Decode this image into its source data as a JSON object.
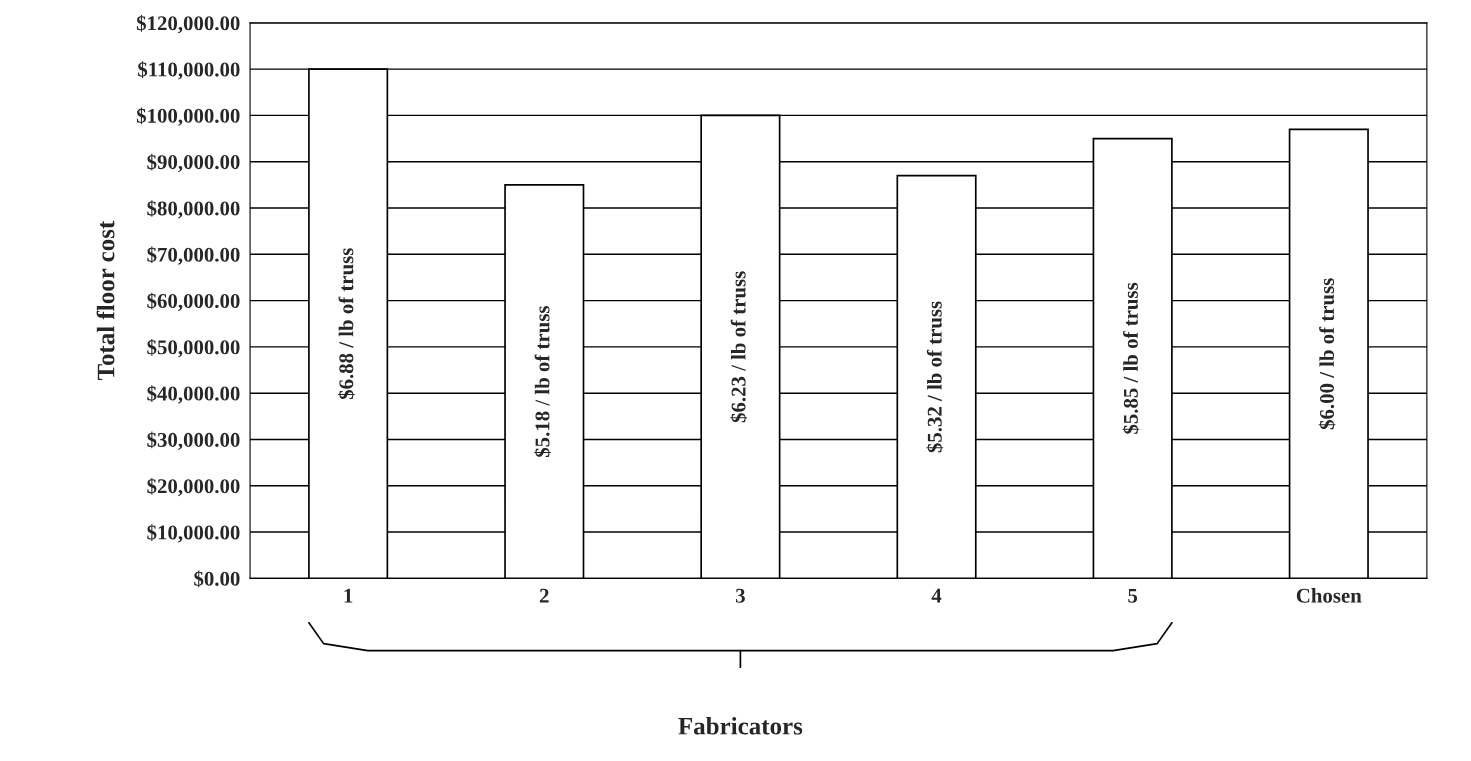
{
  "chart_data": {
    "type": "bar",
    "xlabel": "Fabricators",
    "ylabel": "Total floor cost",
    "categories": [
      "1",
      "2",
      "3",
      "4",
      "5",
      "Chosen"
    ],
    "values": [
      110000,
      85000,
      100000,
      87000,
      95000,
      97000
    ],
    "color": "#ffffff",
    "annotations": [
      "$6.88 / lb of truss",
      "$5.18 / lb of truss",
      "$6.23 / lb of truss",
      "$5.32 / lb of truss",
      "$5.85 / lb of truss",
      "$6.00 / lb of truss"
    ],
    "ylim": [
      0,
      120000
    ],
    "yticks": [
      {
        "value": 0,
        "label": "$0.00"
      },
      {
        "value": 10000,
        "label": "$10,000.00"
      },
      {
        "value": 20000,
        "label": "$20,000.00"
      },
      {
        "value": 30000,
        "label": "$30,000.00"
      },
      {
        "value": 40000,
        "label": "$40,000.00"
      },
      {
        "value": 50000,
        "label": "$50,000.00"
      },
      {
        "value": 60000,
        "label": "$60,000.00"
      },
      {
        "value": 70000,
        "label": "$70,000.00"
      },
      {
        "value": 80000,
        "label": "$80,000.00"
      },
      {
        "value": 90000,
        "label": "$90,000.00"
      },
      {
        "value": 100000,
        "label": "$100,000.00"
      },
      {
        "value": 110000,
        "label": "$110,000.00"
      },
      {
        "value": 120000,
        "label": "$120,000.00"
      }
    ],
    "grid": "y",
    "legend": false
  }
}
